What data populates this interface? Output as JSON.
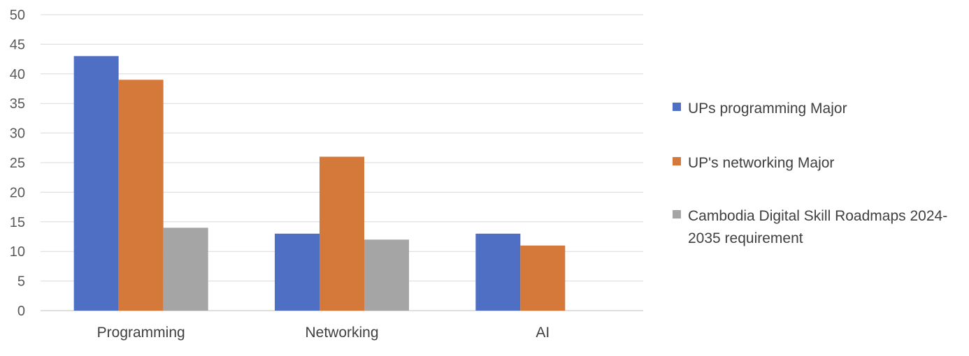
{
  "chart_data": {
    "type": "bar",
    "title": "",
    "xlabel": "",
    "ylabel": "",
    "categories": [
      "Programming",
      "Networking",
      "AI"
    ],
    "series": [
      {
        "name": "UPs programming Major",
        "color": "#4f6fc4",
        "values": [
          43,
          13,
          13
        ]
      },
      {
        "name": "UP's networking Major",
        "color": "#d4793a",
        "values": [
          39,
          26,
          11
        ]
      },
      {
        "name": "Cambodia Digital Skill Roadmaps 2024-2035 requirement",
        "color": "#a5a5a5",
        "values": [
          14,
          12,
          null
        ]
      }
    ],
    "ylim": [
      0,
      50
    ],
    "yticks": [
      "0",
      "5",
      "10",
      "15",
      "20",
      "25",
      "30",
      "35",
      "40",
      "45",
      "50"
    ],
    "grid": true,
    "legend_position": "right"
  }
}
